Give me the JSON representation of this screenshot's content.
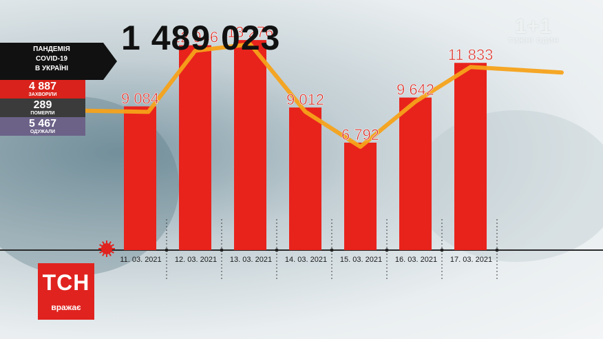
{
  "total": "1 489 023",
  "panel": {
    "title_line1": "ПАНДЕМІЯ",
    "title_line2": "COVID-19",
    "title_line3": "В УКРАЇНІ",
    "sick_value": "4 887",
    "sick_label": "ЗАХВОРІЛИ",
    "dead_value": "289",
    "dead_label": "ПОМЕРЛИ",
    "recovered_value": "5 467",
    "recovered_label": "ОДУЖАЛИ"
  },
  "logo": {
    "main": "1+1",
    "sub": "ТИЖНІ ОДИН"
  },
  "brand": {
    "name": "ТСН",
    "sub": "вражає"
  },
  "chart_data": {
    "type": "bar",
    "categories": [
      "11. 03. 2021",
      "12. 03. 2021",
      "13. 03. 2021",
      "14. 03. 2021",
      "15. 03. 2021",
      "16. 03. 2021",
      "17. 03. 2021"
    ],
    "values": [
      9084,
      12946,
      13276,
      9012,
      6792,
      9642,
      11833
    ],
    "value_labels": [
      "9 084",
      "12 946",
      "13 276",
      "9 012",
      "6 792",
      "9 642",
      "11 833"
    ],
    "trend_line": true,
    "ylim": [
      0,
      14500
    ],
    "colors": {
      "bar": "#e8231c",
      "trend": "#f5a21a",
      "value_label": "#d8221b"
    }
  }
}
